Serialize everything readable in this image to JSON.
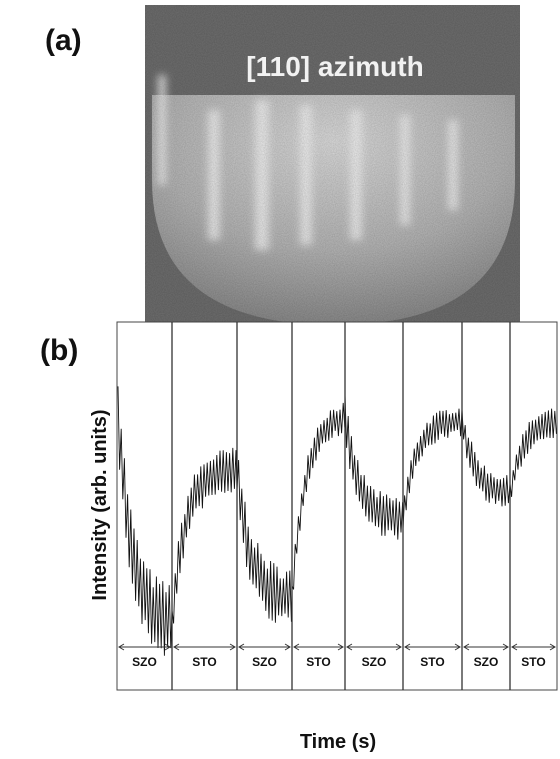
{
  "panels": [
    {
      "label": "(a)",
      "image_text": "[110] azimuth"
    },
    {
      "label": "(b)",
      "y_label": "Intensity (arb. units)",
      "x_label": "Time (s)",
      "segments": [
        "SZO",
        "STO",
        "SZO",
        "STO",
        "SZO",
        "STO",
        "SZO",
        "STO"
      ]
    }
  ]
}
